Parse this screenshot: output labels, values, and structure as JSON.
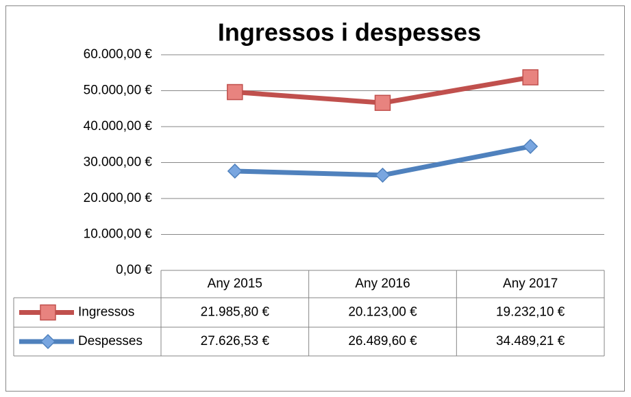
{
  "chart_data": {
    "type": "line",
    "stacked": true,
    "title": "Ingressos i despesses",
    "categories": [
      "Any 2015",
      "Any 2016",
      "Any 2017"
    ],
    "series": [
      {
        "name": "Ingressos",
        "color": "#c0504d",
        "marker": "square",
        "values": [
          21985.8,
          20123.0,
          19232.1
        ],
        "value_labels": [
          "21.985,80 €",
          "20.123,00 €",
          "19.232,10 €"
        ]
      },
      {
        "name": "Despesses",
        "color": "#4f81bd",
        "marker": "diamond",
        "values": [
          27626.53,
          26489.6,
          34489.21
        ],
        "value_labels": [
          "27.626,53 €",
          "26.489,60 €",
          "34.489,21 €"
        ]
      }
    ],
    "ylim": [
      0,
      60000
    ],
    "yticks": [
      {
        "value": 0,
        "label": "0,00 €"
      },
      {
        "value": 10000,
        "label": "10.000,00 €"
      },
      {
        "value": 20000,
        "label": "20.000,00 €"
      },
      {
        "value": 30000,
        "label": "30.000,00 €"
      },
      {
        "value": 40000,
        "label": "40.000,00 €"
      },
      {
        "value": 50000,
        "label": "50.000,00 €"
      },
      {
        "value": 60000,
        "label": "60.000,00 €"
      }
    ],
    "grid": true,
    "data_table": true
  }
}
